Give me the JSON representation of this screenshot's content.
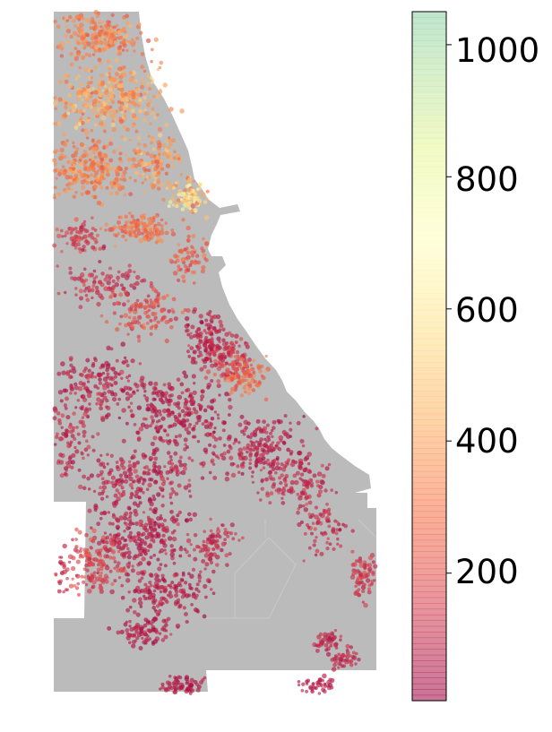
{
  "figure": {
    "type": "geographic-scatter",
    "map_fill": "#bbbbbb",
    "map_stroke": "#c8c8c8",
    "point_alpha": 0.55
  },
  "colorbar": {
    "colormap": "Spectral",
    "range": [
      7,
      1050
    ],
    "ticks": [
      {
        "value": 200,
        "label": "200"
      },
      {
        "value": 400,
        "label": "400"
      },
      {
        "value": 600,
        "label": "600"
      },
      {
        "value": 800,
        "label": "800"
      },
      {
        "value": 1000,
        "label": "1000"
      }
    ],
    "stops": [
      {
        "at": 0.0,
        "color": "#9e0142"
      },
      {
        "at": 0.1,
        "color": "#d53e4f"
      },
      {
        "at": 0.2,
        "color": "#f46d43"
      },
      {
        "at": 0.3,
        "color": "#fdae61"
      },
      {
        "at": 0.4,
        "color": "#fee08b"
      },
      {
        "at": 0.5,
        "color": "#ffffbf"
      },
      {
        "at": 0.6,
        "color": "#e6f598"
      },
      {
        "at": 0.7,
        "color": "#abdda4"
      },
      {
        "at": 0.8,
        "color": "#66c2a5"
      },
      {
        "at": 0.9,
        "color": "#3288bd"
      },
      {
        "at": 1.0,
        "color": "#5e4fa2"
      }
    ],
    "display_max_fraction": 0.745
  }
}
